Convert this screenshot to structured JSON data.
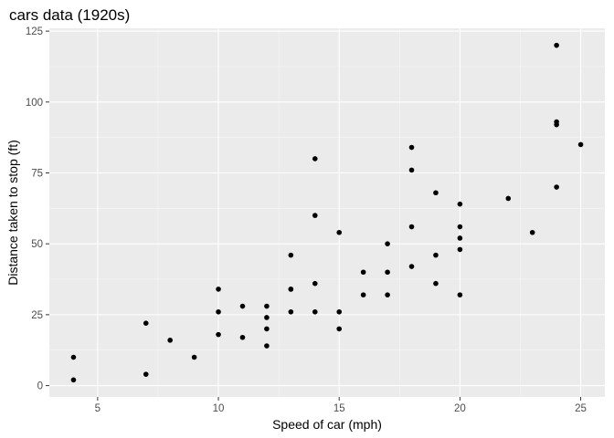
{
  "chart_data": {
    "type": "scatter",
    "title": "cars data (1920s)",
    "xlabel": "Speed of car (mph)",
    "ylabel": "Distance taken to stop (ft)",
    "xlim": [
      3.0,
      26.0
    ],
    "ylim": [
      -4.0,
      126.0
    ],
    "xticks": [
      5,
      10,
      15,
      20,
      25
    ],
    "yticks": [
      0,
      25,
      50,
      75,
      100,
      125
    ],
    "grid": true,
    "legend": "none",
    "colors": {
      "panel_background": "#ebebeb",
      "major_grid": "#ffffff",
      "minor_grid": "#f5f5f5",
      "point": "#000000",
      "tick_label": "#4d4d4d",
      "tick": "#333333"
    },
    "points": [
      {
        "x": 4,
        "y": 2
      },
      {
        "x": 4,
        "y": 10
      },
      {
        "x": 7,
        "y": 4
      },
      {
        "x": 7,
        "y": 22
      },
      {
        "x": 8,
        "y": 16
      },
      {
        "x": 9,
        "y": 10
      },
      {
        "x": 10,
        "y": 18
      },
      {
        "x": 10,
        "y": 26
      },
      {
        "x": 10,
        "y": 34
      },
      {
        "x": 11,
        "y": 17
      },
      {
        "x": 11,
        "y": 28
      },
      {
        "x": 12,
        "y": 14
      },
      {
        "x": 12,
        "y": 20
      },
      {
        "x": 12,
        "y": 24
      },
      {
        "x": 12,
        "y": 28
      },
      {
        "x": 13,
        "y": 26
      },
      {
        "x": 13,
        "y": 34
      },
      {
        "x": 13,
        "y": 34
      },
      {
        "x": 13,
        "y": 46
      },
      {
        "x": 14,
        "y": 26
      },
      {
        "x": 14,
        "y": 36
      },
      {
        "x": 14,
        "y": 60
      },
      {
        "x": 14,
        "y": 80
      },
      {
        "x": 15,
        "y": 20
      },
      {
        "x": 15,
        "y": 26
      },
      {
        "x": 15,
        "y": 54
      },
      {
        "x": 16,
        "y": 32
      },
      {
        "x": 16,
        "y": 40
      },
      {
        "x": 17,
        "y": 32
      },
      {
        "x": 17,
        "y": 40
      },
      {
        "x": 17,
        "y": 50
      },
      {
        "x": 18,
        "y": 42
      },
      {
        "x": 18,
        "y": 56
      },
      {
        "x": 18,
        "y": 76
      },
      {
        "x": 18,
        "y": 84
      },
      {
        "x": 19,
        "y": 36
      },
      {
        "x": 19,
        "y": 46
      },
      {
        "x": 19,
        "y": 68
      },
      {
        "x": 20,
        "y": 32
      },
      {
        "x": 20,
        "y": 48
      },
      {
        "x": 20,
        "y": 52
      },
      {
        "x": 20,
        "y": 56
      },
      {
        "x": 20,
        "y": 64
      },
      {
        "x": 22,
        "y": 66
      },
      {
        "x": 23,
        "y": 54
      },
      {
        "x": 24,
        "y": 70
      },
      {
        "x": 24,
        "y": 92
      },
      {
        "x": 24,
        "y": 93
      },
      {
        "x": 24,
        "y": 120
      },
      {
        "x": 25,
        "y": 85
      }
    ]
  }
}
